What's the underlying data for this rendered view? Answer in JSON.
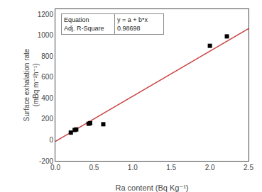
{
  "chart_data": {
    "type": "scatter",
    "xlabel": "Ra content (Bq Kg⁻¹)",
    "ylabel": "Surface exhalation rate\n(mBq m⁻²h⁻¹)",
    "series": [
      {
        "type": "scatter",
        "color": "black",
        "marker": "square",
        "x": [
          0.2,
          0.25,
          0.27,
          0.43,
          0.45,
          0.62,
          2.0,
          2.22
        ],
        "values": [
          70,
          95,
          100,
          155,
          160,
          150,
          900,
          990
        ]
      },
      {
        "type": "line",
        "color": "#cc4444",
        "line_style": "solid",
        "x": [
          0.0,
          2.5
        ],
        "values": [
          -15,
          1065
        ]
      }
    ],
    "xlim": [
      0.0,
      2.5
    ],
    "ylim": [
      -200,
      1250
    ],
    "xticks": [
      {
        "value": 0.0,
        "label": "0.0"
      },
      0.5,
      {
        "value": 1.0,
        "label": "1.0"
      },
      1.5,
      {
        "value": 2.0,
        "label": "2.0"
      },
      2.5
    ],
    "yticks": [
      -200,
      0,
      200,
      400,
      600,
      800,
      1000,
      1200
    ],
    "annotation_rows": [
      [
        "Equation",
        "y = a + b*x"
      ],
      [
        "Adj. R-Square",
        "0.98698"
      ]
    ],
    "grid": false
  }
}
